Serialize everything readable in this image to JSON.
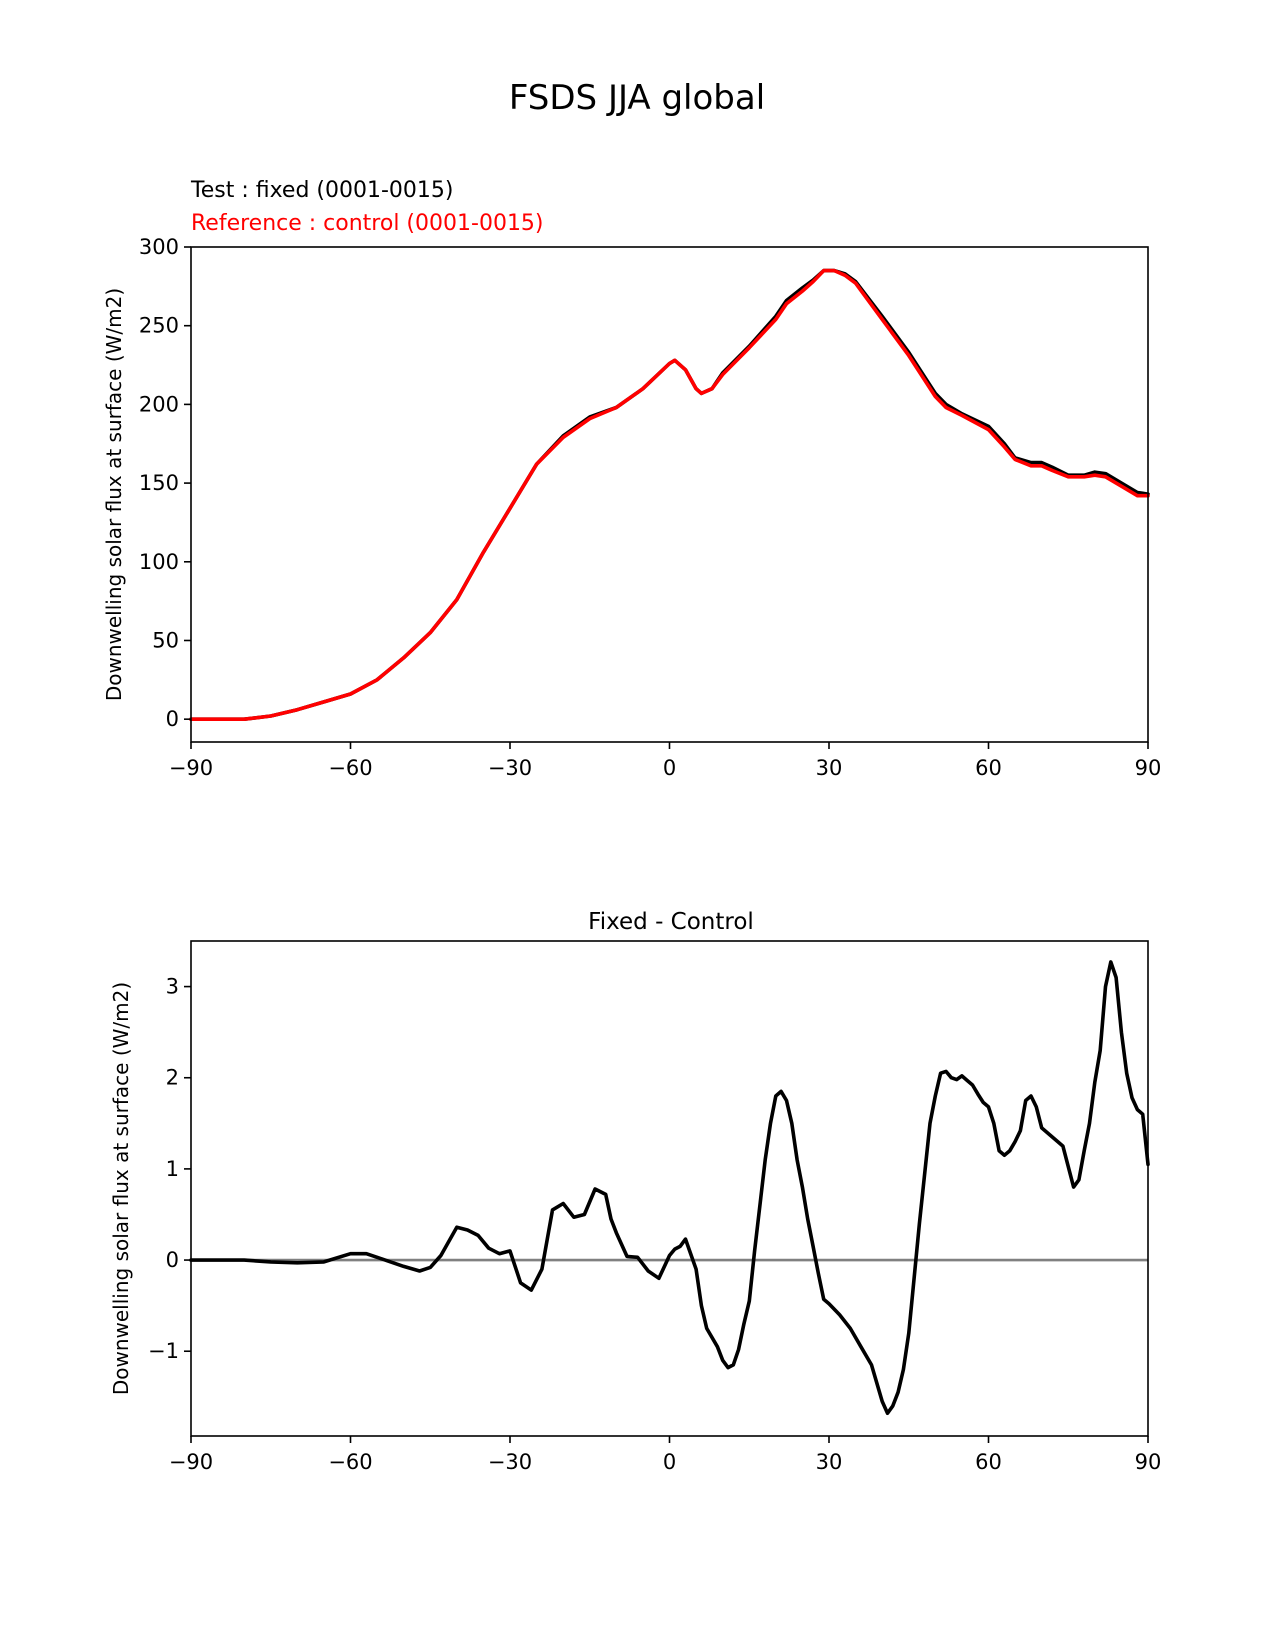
{
  "figure": {
    "suptitle": "FSDS JJA global"
  },
  "chart_data": [
    {
      "type": "line",
      "legend": {
        "test": "Test : fixed (0001-0015)",
        "reference": "Reference : control (0001-0015)"
      },
      "title": "",
      "ylabel": "Downwelling solar flux at surface (W/m2)",
      "xlabel": "",
      "xlim": [
        -90,
        90
      ],
      "ylim": [
        -14.5,
        300
      ],
      "xticks": [
        -90,
        -60,
        -30,
        0,
        30,
        60,
        90
      ],
      "xtick_labels": [
        "−90",
        "−60",
        "−30",
        "0",
        "30",
        "60",
        "90"
      ],
      "yticks": [
        0,
        50,
        100,
        150,
        200,
        250,
        300
      ],
      "ytick_labels": [
        "0",
        "50",
        "100",
        "150",
        "200",
        "250",
        "300"
      ],
      "grid": false,
      "series": [
        {
          "name": "Test : fixed (0001-0015)",
          "color": "#000000",
          "x": [
            -90,
            -80,
            -75,
            -70,
            -65,
            -60,
            -55,
            -50,
            -45,
            -40,
            -35,
            -30,
            -25,
            -20,
            -15,
            -10,
            -5,
            0,
            1,
            3,
            5,
            6,
            8,
            10,
            15,
            20,
            22,
            25,
            27,
            29,
            31,
            33,
            35,
            40,
            45,
            50,
            52,
            55,
            60,
            63,
            65,
            68,
            70,
            72,
            75,
            78,
            80,
            82,
            85,
            88,
            90
          ],
          "y": [
            0,
            0,
            2,
            6,
            11,
            16,
            25,
            39,
            55,
            76,
            106,
            134,
            162,
            180,
            192,
            198,
            210,
            226,
            228,
            222,
            210,
            207,
            210,
            220,
            237,
            256,
            266,
            274,
            279,
            285,
            285,
            283,
            278,
            256,
            233,
            207,
            200,
            194,
            186,
            175,
            166,
            163,
            163,
            160,
            155,
            155,
            157,
            156,
            150,
            144,
            143
          ]
        },
        {
          "name": "Reference : control (0001-0015)",
          "color": "#ff0000",
          "x": [
            -90,
            -80,
            -75,
            -70,
            -65,
            -60,
            -55,
            -50,
            -45,
            -40,
            -35,
            -30,
            -25,
            -20,
            -15,
            -10,
            -5,
            0,
            1,
            3,
            5,
            6,
            8,
            10,
            15,
            20,
            22,
            25,
            27,
            29,
            31,
            33,
            35,
            40,
            45,
            50,
            52,
            55,
            60,
            63,
            65,
            68,
            70,
            72,
            75,
            78,
            80,
            82,
            85,
            88,
            90
          ],
          "y": [
            0,
            0,
            2,
            6,
            11,
            16,
            25,
            39,
            55,
            76,
            106,
            134,
            162,
            179,
            191,
            198,
            210,
            226,
            228,
            222,
            210,
            207,
            210,
            219,
            236,
            254,
            264,
            272,
            278,
            285,
            285,
            282,
            277,
            254,
            231,
            205,
            198,
            193,
            184,
            173,
            165,
            161,
            161,
            158,
            154,
            154,
            155,
            154,
            148,
            142,
            142
          ]
        }
      ]
    },
    {
      "type": "line",
      "title": "Fixed - Control",
      "ylabel": "Downwelling solar flux at surface (W/m2)",
      "xlabel": "",
      "xlim": [
        -90,
        90
      ],
      "ylim": [
        -1.93,
        3.5
      ],
      "xticks": [
        -90,
        -60,
        -30,
        0,
        30,
        60,
        90
      ],
      "xtick_labels": [
        "−90",
        "−60",
        "−30",
        "0",
        "30",
        "60",
        "90"
      ],
      "yticks": [
        -1,
        0,
        1,
        2,
        3
      ],
      "ytick_labels": [
        "−1",
        "0",
        "1",
        "2",
        "3"
      ],
      "grid": false,
      "zero_line": {
        "value": 0,
        "color": "#808080"
      },
      "series": [
        {
          "name": "",
          "color": "#000000",
          "x": [
            -90,
            -80,
            -75,
            -70,
            -65,
            -60,
            -57,
            -55,
            -50,
            -47,
            -45,
            -43,
            -40,
            -38,
            -36,
            -34,
            -32,
            -30,
            -28,
            -26,
            -24,
            -22,
            -20,
            -18,
            -16,
            -14,
            -12,
            -11,
            -10,
            -8,
            -6,
            -4,
            -2,
            0,
            1,
            2,
            3,
            5,
            6,
            7,
            9,
            10,
            11,
            12,
            13,
            14,
            15,
            16,
            17,
            18,
            19,
            20,
            21,
            22,
            23,
            24,
            25,
            26,
            27,
            28,
            29,
            30,
            32,
            34,
            36,
            38,
            40,
            41,
            42,
            43,
            44,
            45,
            46,
            47,
            49,
            50,
            51,
            52,
            53,
            54,
            55,
            56,
            57,
            58,
            59,
            60,
            61,
            62,
            63,
            64,
            65,
            66,
            67,
            68,
            69,
            70,
            72,
            74,
            76,
            77,
            78,
            79,
            80,
            81,
            82,
            83,
            84,
            85,
            86,
            87,
            88,
            89,
            90
          ],
          "y": [
            0,
            0,
            -0.02,
            -0.03,
            -0.02,
            0.07,
            0.07,
            0.03,
            -0.07,
            -0.12,
            -0.08,
            0.05,
            0.36,
            0.33,
            0.27,
            0.13,
            0.07,
            0.1,
            -0.25,
            -0.33,
            -0.1,
            0.55,
            0.62,
            0.47,
            0.5,
            0.78,
            0.72,
            0.45,
            0.3,
            0.04,
            0.03,
            -0.12,
            -0.2,
            0.05,
            0.12,
            0.15,
            0.23,
            -0.1,
            -0.5,
            -0.75,
            -0.95,
            -1.1,
            -1.18,
            -1.15,
            -0.98,
            -0.7,
            -0.45,
            0.1,
            0.6,
            1.1,
            1.5,
            1.8,
            1.85,
            1.75,
            1.5,
            1.1,
            0.8,
            0.45,
            0.15,
            -0.15,
            -0.43,
            -0.48,
            -0.6,
            -0.75,
            -0.95,
            -1.15,
            -1.55,
            -1.68,
            -1.6,
            -1.45,
            -1.2,
            -0.8,
            -0.2,
            0.4,
            1.5,
            1.8,
            2.05,
            2.07,
            2.0,
            1.98,
            2.02,
            1.97,
            1.92,
            1.82,
            1.73,
            1.68,
            1.5,
            1.2,
            1.15,
            1.2,
            1.3,
            1.42,
            1.75,
            1.8,
            1.68,
            1.45,
            1.35,
            1.25,
            0.8,
            0.88,
            1.2,
            1.5,
            1.95,
            2.3,
            3.0,
            3.27,
            3.1,
            2.5,
            2.05,
            1.78,
            1.65,
            1.6,
            1.05
          ]
        }
      ]
    }
  ]
}
